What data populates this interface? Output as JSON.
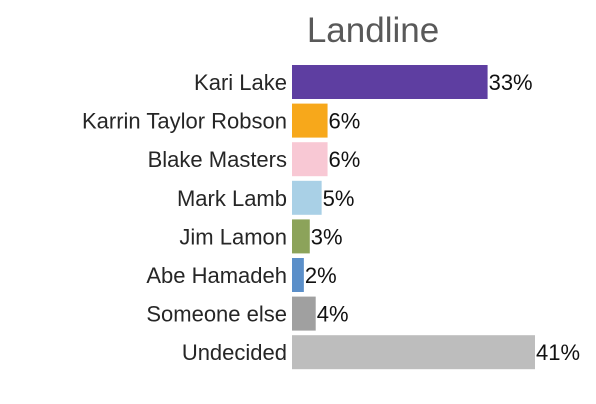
{
  "chart_data": {
    "type": "bar",
    "orientation": "horizontal",
    "title": "Landline",
    "categories": [
      "Kari Lake",
      "Karrin Taylor Robson",
      "Blake Masters",
      "Mark Lamb",
      "Jim Lamon",
      "Abe Hamadeh",
      "Someone else",
      "Undecided"
    ],
    "values": [
      33,
      6,
      6,
      5,
      3,
      2,
      4,
      41
    ],
    "value_labels": [
      "33%",
      "6%",
      "6%",
      "5%",
      "3%",
      "2%",
      "4%",
      "41%"
    ],
    "colors": [
      "#5e3ea1",
      "#f7a81b",
      "#f8c8d4",
      "#a9d0e6",
      "#8ca35a",
      "#5b8fc9",
      "#a0a0a0",
      "#bdbdbd"
    ],
    "xlabel": "",
    "ylabel": "",
    "xlim": [
      0,
      41
    ],
    "grid": false,
    "legend": "none"
  }
}
